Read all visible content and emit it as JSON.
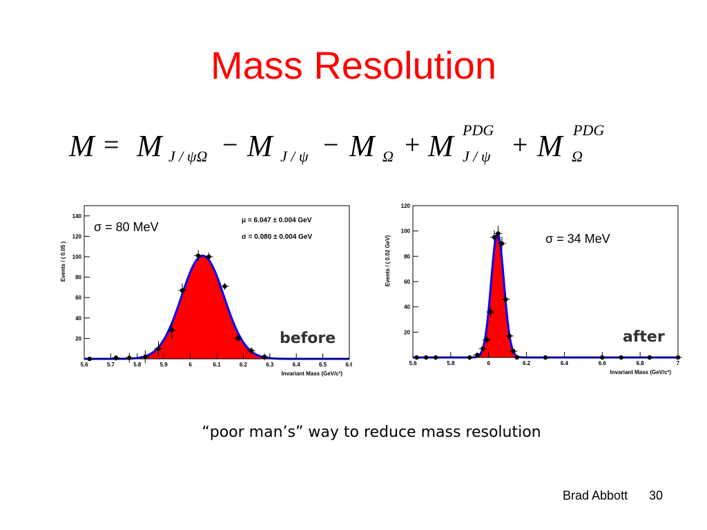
{
  "slide": {
    "title": "Mass Resolution",
    "caption": "“poor man’s” way to reduce mass resolution",
    "author": "Brad Abbott",
    "page": "30"
  },
  "equation": {
    "M": "M",
    "eq": "=",
    "minus": "−",
    "plus": "+",
    "sub_jpo": "J / ψΩ",
    "sub_jp": "J / ψ",
    "sub_om": "Ω",
    "sup_pdg": "PDG"
  },
  "colors": {
    "title": "#ff0000",
    "fill": "#ff0000",
    "fit_line": "#0000ff",
    "points": "#000000"
  },
  "chart_data": [
    {
      "type": "scatter",
      "name": "before",
      "overlay_label": "before",
      "sigma_label": "σ = 80 MeV",
      "stats": [
        "μ = 6.047 ± 0.004 GeV",
        "σ = 0.080 ± 0.004 GeV"
      ],
      "xlabel": "Invariant Mass (GeV/c²)",
      "ylabel": "Events / ( 0.05 )",
      "xlim": [
        5.6,
        6.6
      ],
      "ylim": [
        0,
        150
      ],
      "xticks": [
        "5.6",
        "5.7",
        "5.8",
        "5.9",
        "6",
        "6.1",
        "6.2",
        "6.3",
        "6.4",
        "6.5",
        "6.6"
      ],
      "yticks": [
        "20",
        "40",
        "60",
        "80",
        "100",
        "120",
        "140"
      ],
      "fit": {
        "mean": 6.047,
        "sigma": 0.08,
        "amplitude": 101
      },
      "points": {
        "x": [
          5.62,
          5.72,
          5.77,
          5.83,
          5.88,
          5.93,
          5.97,
          6.03,
          6.07,
          6.13,
          6.18,
          6.23,
          6.28
        ],
        "y": [
          0,
          1,
          1,
          2,
          10,
          28,
          67,
          101,
          100,
          71,
          20,
          8,
          2
        ]
      }
    },
    {
      "type": "scatter",
      "name": "after",
      "overlay_label": "after",
      "sigma_label": "σ = 34 MeV",
      "xlabel": "Invariant Mass (GeV/c²)",
      "ylabel": "Events / ( 0.02 GeV)",
      "xlim": [
        5.6,
        7.0
      ],
      "ylim": [
        0,
        120
      ],
      "xticks": [
        "5.6",
        "5.8",
        "6",
        "6.2",
        "6.4",
        "6.6",
        "6.8",
        "7"
      ],
      "yticks": [
        "20",
        "40",
        "60",
        "80",
        "100",
        "120"
      ],
      "fit": {
        "mean": 6.047,
        "sigma": 0.034,
        "amplitude": 98
      },
      "points": {
        "x": [
          5.62,
          5.67,
          5.72,
          5.9,
          5.94,
          5.97,
          5.99,
          6.01,
          6.03,
          6.05,
          6.07,
          6.09,
          6.11,
          6.13,
          6.15,
          6.3,
          6.6,
          6.7,
          6.85,
          7.0
        ],
        "y": [
          0,
          0,
          0,
          0,
          2,
          7,
          14,
          36,
          95,
          98,
          90,
          46,
          17,
          5,
          0,
          0,
          0,
          0,
          0,
          0
        ]
      }
    }
  ]
}
